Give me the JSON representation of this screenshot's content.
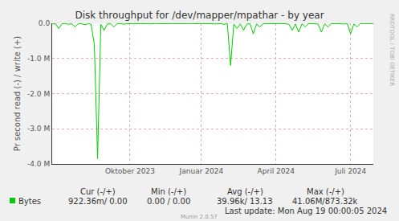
{
  "chart_data": {
    "type": "line",
    "title": "Disk throughput for /dev/mapper/mpathar - by year",
    "y_label": "Pr second read (-) / write (+)",
    "categories": [
      null,
      null,
      null,
      null,
      null,
      null,
      null,
      null,
      null,
      null,
      null,
      null,
      null,
      null,
      null,
      null,
      null,
      null,
      null,
      null,
      null,
      null,
      null,
      null,
      "Oktober 2023",
      null,
      null,
      null,
      null,
      null,
      null,
      null,
      null,
      null,
      null,
      null,
      null,
      null,
      null,
      null,
      null,
      null,
      null,
      null,
      null,
      null,
      "Januar 2024",
      null,
      null,
      null,
      null,
      null,
      null,
      null,
      null,
      null,
      null,
      null,
      null,
      null,
      null,
      null,
      null,
      null,
      null,
      null,
      null,
      null,
      null,
      "April 2024",
      null,
      null,
      null,
      null,
      null,
      null,
      null,
      null,
      null,
      null,
      null,
      null,
      null,
      null,
      null,
      null,
      null,
      null,
      null,
      null,
      null,
      null,
      "Juli 2024",
      null,
      null,
      null,
      null,
      null,
      null,
      null
    ],
    "series": [
      {
        "name": "Bytes",
        "color": "#00CC00",
        "values": [
          -20000,
          -10000,
          -150000,
          -15000,
          -8000,
          -30000,
          -12000,
          -100000,
          -20000,
          -9000,
          -40000,
          -15000,
          -25000,
          -600000,
          -3850000,
          -30000,
          -200000,
          -20000,
          -10000,
          -100000,
          -15000,
          -8000,
          -25000,
          -12000,
          -10000,
          -18000,
          -6000,
          -9000,
          -14000,
          -7000,
          -20000,
          -10000,
          -5000,
          -12000,
          -8000,
          -15000,
          -6000,
          -9000,
          -11000,
          -7000,
          -13000,
          -5000,
          -10000,
          -8000,
          -12000,
          -6000,
          -9000,
          -15000,
          -7000,
          -10000,
          -20000,
          -8000,
          -12000,
          -30000,
          -10000,
          -1200000,
          -20000,
          -150000,
          -15000,
          -200000,
          -25000,
          -10000,
          -300000,
          -20000,
          -100000,
          -15000,
          -12000,
          -8000,
          -20000,
          -10000,
          -15000,
          -9000,
          -12000,
          -30000,
          -200000,
          -20000,
          -250000,
          -15000,
          -100000,
          -10000,
          -12000,
          -8000,
          -20000,
          -250000,
          -15000,
          -100000,
          -10000,
          -12000,
          -8000,
          -15000,
          -20000,
          -10000,
          -300000,
          -20000,
          -100000,
          -12000,
          -8000,
          -10000,
          -6000,
          -9000
        ]
      }
    ],
    "ylim": [
      -4000000,
      0
    ],
    "yticks": [
      {
        "value": 0,
        "label": "0.0"
      },
      {
        "value": -1000000,
        "label": "-1.0 M"
      },
      {
        "value": -2000000,
        "label": "-2.0 M"
      },
      {
        "value": -3000000,
        "label": "-3.0 M"
      },
      {
        "value": -4000000,
        "label": "-4.0 M"
      }
    ],
    "grid": true,
    "summary": {
      "columns": [
        "Cur (-/+)",
        "Min (-/+)",
        "Avg (-/+)",
        "Max (-/+)"
      ],
      "row_name": "Bytes",
      "cells": [
        "922.36m/ 0.00",
        "0.00 / 0.00",
        "39.96k/ 13.13",
        "41.06M/873.32k"
      ]
    },
    "footer": "Last update: Mon Aug 19 00:00:05 2024",
    "credit": "Munin 2.0.57",
    "watermark": "RRDTOOL / TOBI OETIKER"
  }
}
